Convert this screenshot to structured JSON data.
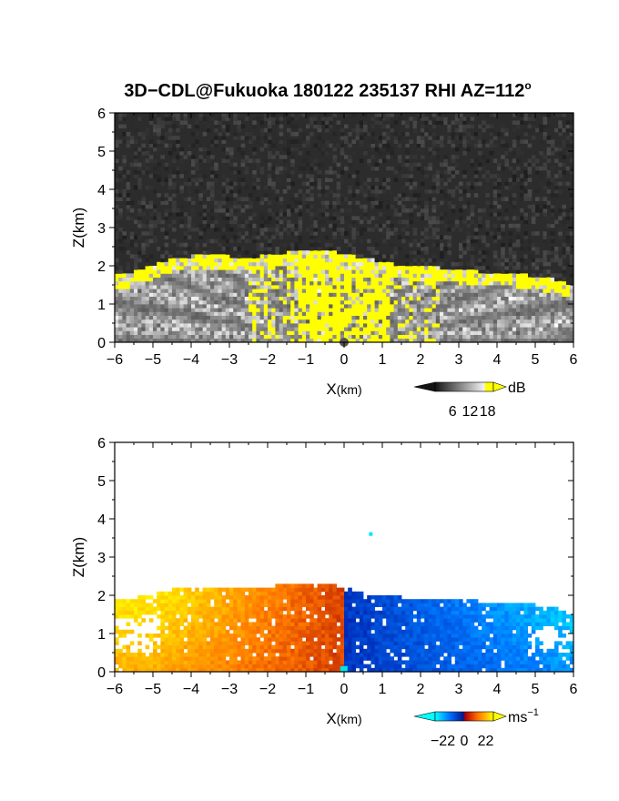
{
  "title": "3D−CDL@Fukuoka 180122 235137 RHI AZ=112",
  "title_sup": "o",
  "chart_data": [
    {
      "type": "heatmap",
      "variable": "signal intensity",
      "xlabel_main": "X",
      "xlabel_unit": "(km)",
      "ylabel": "Z(km)",
      "xlim": [
        -6,
        6
      ],
      "ylim": [
        0,
        6
      ],
      "xticks": [
        "−6",
        "−5",
        "−4",
        "−3",
        "−2",
        "−1",
        "0",
        "1",
        "2",
        "3",
        "4",
        "5",
        "6"
      ],
      "yticks": [
        "0",
        "1",
        "2",
        "3",
        "4",
        "5",
        "6"
      ],
      "colorbar": {
        "unit": "dB",
        "ticks": [
          "6",
          "12",
          "18"
        ],
        "range": [
          0,
          20
        ],
        "colors": [
          "#1a1a1a",
          "#f2f2f2",
          "#ffff00"
        ]
      },
      "top_echo_boundary": {
        "x": [
          -5.6,
          -4.5,
          -3.5,
          -2.5,
          -1.5,
          -0.5,
          0.5,
          1.5,
          2.5,
          3.5,
          4.5,
          5.5,
          6.0
        ],
        "z": [
          1.7,
          2.1,
          2.2,
          2.1,
          2.25,
          2.3,
          2.1,
          1.9,
          1.85,
          1.75,
          1.7,
          1.55,
          1.35
        ]
      }
    },
    {
      "type": "heatmap",
      "variable": "radial velocity",
      "xlabel_main": "X",
      "xlabel_unit": "(km)",
      "ylabel": "Z(km)",
      "xlim": [
        -6,
        6
      ],
      "ylim": [
        0,
        6
      ],
      "xticks": [
        "−6",
        "−5",
        "−4",
        "−3",
        "−2",
        "−1",
        "0",
        "1",
        "2",
        "3",
        "4",
        "5",
        "6"
      ],
      "yticks": [
        "0",
        "1",
        "2",
        "3",
        "4",
        "5",
        "6"
      ],
      "colorbar": {
        "unit": "ms",
        "unit_sup": "−1",
        "ticks": [
          "−22",
          "0",
          "22"
        ],
        "range": [
          -30,
          30
        ],
        "colors": [
          "#00ffff",
          "#0066ff",
          "#000080",
          "#cc0000",
          "#ff8000",
          "#ffff00"
        ]
      },
      "top_echo_boundary": {
        "x": [
          -5.6,
          -4.5,
          -3.5,
          -2.5,
          -1.5,
          -0.5,
          0.5,
          1.5,
          2.5,
          3.5,
          4.5,
          5.5,
          6.0
        ],
        "z": [
          1.9,
          2.15,
          2.2,
          2.15,
          2.3,
          2.35,
          2.05,
          1.95,
          1.9,
          1.85,
          1.8,
          1.7,
          1.45
        ]
      }
    }
  ]
}
